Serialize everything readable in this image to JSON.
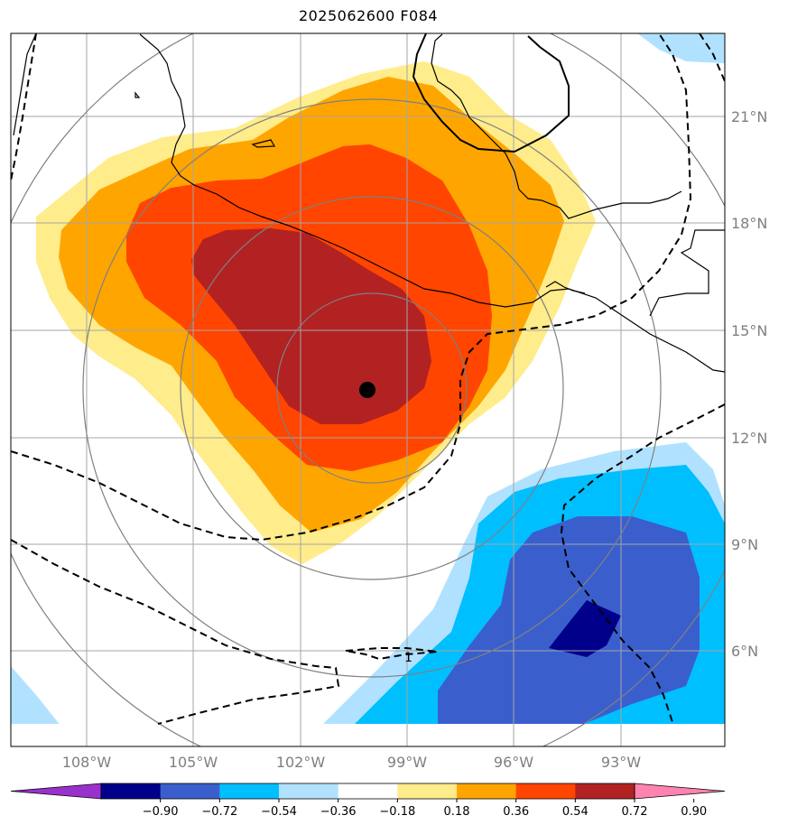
{
  "title": "2025062600 F084",
  "map": {
    "lon_range": [
      -110,
      -90
    ],
    "lat_range": [
      3.3,
      23.4
    ],
    "center_marker": {
      "lon": -100.1,
      "lat": 13.3
    },
    "lat_labels": [
      "21°N",
      "18°N",
      "15°N",
      "12°N",
      "9°N",
      "6°N"
    ],
    "lon_labels": [
      "108°W",
      "105°W",
      "102°W",
      "99°W",
      "96°W",
      "93°W"
    ],
    "grid": true
  },
  "colorbar": {
    "levels": [
      "−0.90",
      "−0.72",
      "−0.54",
      "−0.36",
      "−0.18",
      "0.18",
      "0.36",
      "0.54",
      "0.72",
      "0.90"
    ],
    "colors": [
      "#9932cc",
      "#00008b",
      "#3a5fcd",
      "#00bfff",
      "#b0e2ff",
      "#ffffff",
      "#ffec8b",
      "#ffa500",
      "#ff4500",
      "#b22222",
      "#ff83b0"
    ]
  },
  "contour_label": "1"
}
